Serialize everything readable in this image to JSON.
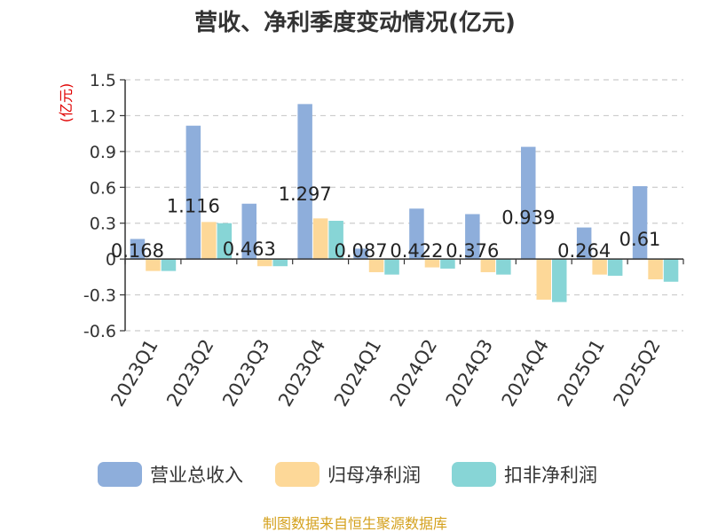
{
  "chart_data": {
    "type": "bar",
    "title": "营收、净利季度变动情况(亿元)",
    "ylabel": "(亿元)",
    "xlabel": "",
    "ylim": [
      -0.6,
      1.5
    ],
    "yticks": [
      1.5,
      1.2,
      0.9,
      0.6,
      0.3,
      0,
      -0.3,
      -0.6
    ],
    "grid": true,
    "legend_position": "bottom",
    "categories": [
      "2023Q1",
      "2023Q2",
      "2023Q3",
      "2023Q4",
      "2024Q1",
      "2024Q2",
      "2024Q3",
      "2024Q4",
      "2025Q1",
      "2025Q2"
    ],
    "series": [
      {
        "name": "营业总收入",
        "color": "#8eaedb",
        "values": [
          0.168,
          1.116,
          0.463,
          1.297,
          0.087,
          0.422,
          0.376,
          0.939,
          0.264,
          0.61
        ],
        "labels": [
          "0.168",
          "1.116",
          "0.463",
          "1.297",
          "0.087",
          "0.422",
          "0.376",
          "0.939",
          "0.264",
          "0.61"
        ]
      },
      {
        "name": "归母净利润",
        "color": "#fdd898",
        "values": [
          -0.1,
          0.31,
          -0.06,
          0.34,
          -0.11,
          -0.07,
          -0.11,
          -0.34,
          -0.13,
          -0.17
        ]
      },
      {
        "name": "扣非净利润",
        "color": "#87d5d6",
        "values": [
          -0.1,
          0.3,
          -0.06,
          0.32,
          -0.13,
          -0.08,
          -0.13,
          -0.36,
          -0.14,
          -0.19
        ]
      }
    ],
    "source": "制图数据来自恒生聚源数据库"
  }
}
